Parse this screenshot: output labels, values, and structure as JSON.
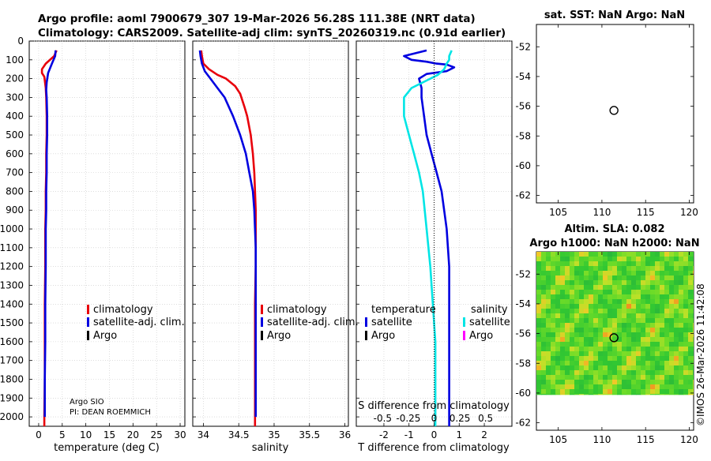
{
  "header": {
    "title_line1": "Argo profile: aoml 7900679_307 19-Mar-2026 56.28S 111.38E (NRT data)",
    "title_line2": "Climatology: CARS2009. Satellite-adj clim: synTS_20260319.nc (0.91d earlier)"
  },
  "footer": {
    "watermark": "©IMOS 26-Mar-2026 11:42:08"
  },
  "depth_axis": {
    "ticks": [
      "0",
      "100",
      "200",
      "300",
      "400",
      "500",
      "600",
      "700",
      "800",
      "900",
      "1000",
      "1100",
      "1200",
      "1300",
      "1400",
      "1500",
      "1600",
      "1700",
      "1800",
      "1900",
      "2000"
    ]
  },
  "legends": {
    "temperature_panel": [
      "climatology",
      "satellite-adj. clim.",
      "Argo"
    ],
    "salinity_panel": [
      "climatology",
      "satellite-adj. clim.",
      "Argo"
    ],
    "difference_panel": {
      "temp_header": "temperature",
      "temp_items": [
        "satellite",
        "Argo"
      ],
      "sal_header": "salinity",
      "sal_items": [
        "satellite",
        "Argo"
      ]
    }
  },
  "float_info": {
    "line1": "Argo SIO",
    "line2": "PI: DEAN ROEMMICH"
  },
  "colors": {
    "climatology": "#e8000b",
    "satellite_adj": "#0000e0",
    "argo": "#000000",
    "sat_diff_temp": "#0000e0",
    "sat_diff_sal": "#00e5e5",
    "argo_diff_sal": "#ff00ff"
  },
  "chart_data": [
    {
      "id": "temperature",
      "type": "line",
      "xlabel": "temperature (deg C)",
      "ylabel": "depth",
      "xlim": [
        -2,
        31
      ],
      "ylim": [
        2050,
        0
      ],
      "xticks": [
        "0",
        "5",
        "10",
        "15",
        "20",
        "25",
        "30"
      ],
      "xtick_values": [
        0,
        5,
        10,
        15,
        20,
        25,
        30
      ],
      "series": [
        {
          "name": "climatology",
          "color": "#e8000b",
          "x": [
            3.8,
            3.3,
            1.5,
            0.7,
            0.7,
            1.2,
            1.5,
            1.6,
            1.7,
            1.7,
            1.6,
            1.6,
            1.5,
            1.5,
            1.4,
            1.4,
            1.3,
            1.3,
            1.3,
            1.2,
            1.2
          ],
          "y": [
            50,
            80,
            120,
            150,
            170,
            190,
            250,
            300,
            400,
            500,
            600,
            700,
            800,
            900,
            1000,
            1200,
            1400,
            1600,
            1800,
            2000,
            2050
          ]
        },
        {
          "name": "satellite-adj. clim.",
          "color": "#0000e0",
          "x": [
            3.6,
            3.5,
            2.8,
            2.0,
            1.7,
            1.6,
            1.7,
            1.8,
            1.8,
            1.7,
            1.7,
            1.6,
            1.6,
            1.5,
            1.5,
            1.4,
            1.4,
            1.3,
            1.3
          ],
          "y": [
            50,
            80,
            120,
            170,
            220,
            260,
            300,
            400,
            500,
            600,
            700,
            800,
            900,
            1000,
            1200,
            1400,
            1600,
            1800,
            2000
          ]
        }
      ]
    },
    {
      "id": "salinity",
      "type": "line",
      "xlabel": "salinity",
      "ylabel": "depth",
      "xlim": [
        33.85,
        36.05
      ],
      "ylim": [
        2050,
        0
      ],
      "xticks": [
        "34",
        "34.5",
        "35",
        "35.5",
        "36"
      ],
      "xtick_values": [
        34,
        34.5,
        35,
        35.5,
        36
      ],
      "series": [
        {
          "name": "climatology",
          "color": "#e8000b",
          "x": [
            33.97,
            33.98,
            34.0,
            34.08,
            34.2,
            34.32,
            34.45,
            34.52,
            34.58,
            34.62,
            34.67,
            34.7,
            34.72,
            34.73,
            34.74,
            34.74,
            34.74,
            34.74,
            34.73,
            34.73,
            34.73
          ],
          "y": [
            50,
            80,
            120,
            150,
            180,
            200,
            240,
            280,
            350,
            400,
            500,
            600,
            700,
            800,
            900,
            1000,
            1100,
            1200,
            1400,
            1600,
            2050
          ]
        },
        {
          "name": "satellite-adj. clim.",
          "color": "#0000e0",
          "x": [
            33.95,
            33.96,
            33.98,
            34.02,
            34.1,
            34.2,
            34.3,
            34.42,
            34.52,
            34.6,
            34.65,
            34.7,
            34.72,
            34.73,
            34.74,
            34.74,
            34.74,
            34.74,
            34.74
          ],
          "y": [
            50,
            80,
            120,
            160,
            200,
            250,
            300,
            400,
            500,
            600,
            700,
            800,
            900,
            1000,
            1100,
            1200,
            1400,
            1600,
            2000
          ]
        }
      ]
    },
    {
      "id": "difference",
      "type": "line",
      "xlabel": "T difference from climatology",
      "secondary_xlabel": "S difference from climatology",
      "ylabel": "depth",
      "xlim": [
        -3.1,
        3.1
      ],
      "ylim": [
        2050,
        0
      ],
      "xticks": [
        "-2",
        "-1",
        "0",
        "1",
        "2"
      ],
      "xtick_values": [
        -2,
        -1,
        0,
        1,
        2
      ],
      "secondary_xticks": [
        "-0.5",
        "-0.25",
        "0",
        "0.25",
        "0.5"
      ],
      "secondary_xtick_values": [
        -0.5,
        -0.25,
        0,
        0.25,
        0.5
      ],
      "series": [
        {
          "name": "satellite temperature difference",
          "color": "#0000e0",
          "x": [
            -0.3,
            -1.2,
            -0.9,
            -0.3,
            0.1,
            0.5,
            0.8,
            0.5,
            -0.3,
            -0.6,
            -0.5,
            -0.5,
            -0.4,
            -0.3,
            -0.1,
            0.1,
            0.3,
            0.5,
            0.6,
            0.6,
            0.6,
            0.6,
            0.6,
            0.6
          ],
          "y": [
            50,
            80,
            100,
            110,
            120,
            125,
            140,
            160,
            175,
            200,
            250,
            300,
            400,
            500,
            600,
            700,
            800,
            1000,
            1200,
            1400,
            1600,
            1800,
            2000,
            2050
          ]
        },
        {
          "name": "satellite salinity difference",
          "color": "#00e5e5",
          "x": [
            0.7,
            0.6,
            0.6,
            0.5,
            0.4,
            0.15,
            -0.3,
            -0.9,
            -1.2,
            -1.2,
            -1.0,
            -0.8,
            -0.6,
            -0.45,
            -0.3,
            -0.15,
            -0.05,
            0.05,
            0.05,
            0.05
          ],
          "y": [
            50,
            80,
            100,
            120,
            150,
            180,
            210,
            250,
            300,
            400,
            500,
            600,
            700,
            800,
            1000,
            1200,
            1400,
            1600,
            1800,
            2050
          ]
        },
        {
          "name": "zero reference",
          "color": "#000000",
          "x": [
            0,
            0
          ],
          "y": [
            0,
            2050
          ]
        }
      ]
    },
    {
      "id": "sst_map",
      "type": "scatter",
      "title": "sat. SST: NaN Argo: NaN",
      "xlim": [
        102.5,
        120.5
      ],
      "ylim": [
        -62.5,
        -50.5
      ],
      "xticks": [
        "105",
        "110",
        "115",
        "120"
      ],
      "xtick_values": [
        105,
        110,
        115,
        120
      ],
      "yticks": [
        "-52",
        "-54",
        "-56",
        "-58",
        "-60",
        "-62"
      ],
      "ytick_values": [
        -52,
        -54,
        -56,
        -58,
        -60,
        -62
      ],
      "points": [
        {
          "lon": 111.38,
          "lat": -56.28
        }
      ]
    },
    {
      "id": "sla_map",
      "type": "heatmap",
      "title_line1": "Altim. SLA: 0.082",
      "title_line2": "Argo h1000: NaN h2000: NaN",
      "xlim": [
        102.5,
        120.5
      ],
      "ylim": [
        -62.5,
        -50.5
      ],
      "data_lat_range": [
        -60.1,
        -50.5
      ],
      "xticks": [
        "105",
        "110",
        "115",
        "120"
      ],
      "xtick_values": [
        105,
        110,
        115,
        120
      ],
      "yticks": [
        "-52",
        "-54",
        "-56",
        "-58",
        "-60",
        "-62"
      ],
      "ytick_values": [
        -52,
        -54,
        -56,
        -58,
        -60,
        -62
      ],
      "points": [
        {
          "lon": 111.38,
          "lat": -56.28
        }
      ]
    }
  ]
}
